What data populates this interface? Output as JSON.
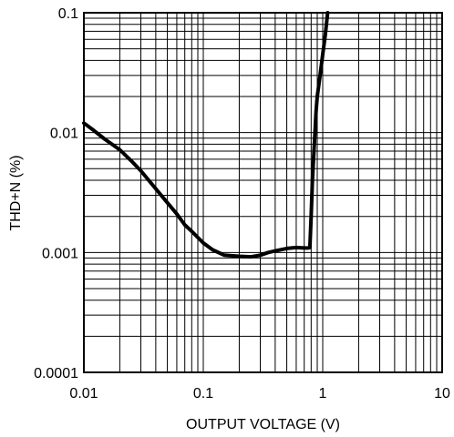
{
  "chart_data": {
    "type": "line",
    "xlabel": "OUTPUT VOLTAGE (V)",
    "ylabel": "THD+N (%)",
    "x_scale": "log",
    "y_scale": "log",
    "xlim": [
      0.01,
      10
    ],
    "ylim": [
      0.0001,
      0.1
    ],
    "grid": true,
    "x_ticks": [
      {
        "value": 0.01,
        "label": "0.01"
      },
      {
        "value": 0.1,
        "label": "0.1"
      },
      {
        "value": 1,
        "label": "1"
      },
      {
        "value": 10,
        "label": "10"
      }
    ],
    "y_ticks": [
      {
        "value": 0.0001,
        "label": "0.0001"
      },
      {
        "value": 0.001,
        "label": "0.001"
      },
      {
        "value": 0.01,
        "label": "0.01"
      },
      {
        "value": 0.1,
        "label": "0.1"
      }
    ],
    "series": [
      {
        "x": [
          0.01,
          0.012,
          0.015,
          0.02,
          0.025,
          0.03,
          0.04,
          0.05,
          0.06,
          0.07,
          0.08,
          0.1,
          0.12,
          0.15,
          0.2,
          0.25,
          0.3,
          0.35,
          0.4,
          0.5,
          0.6,
          0.7,
          0.75,
          0.78,
          0.8,
          0.82,
          0.85,
          0.88,
          0.9,
          0.95,
          1.0,
          1.05,
          1.1
        ],
        "y": [
          0.012,
          0.0105,
          0.0088,
          0.0072,
          0.0058,
          0.0048,
          0.0034,
          0.0026,
          0.0021,
          0.0017,
          0.0015,
          0.0012,
          0.00105,
          0.00095,
          0.00093,
          0.00092,
          0.00095,
          0.001,
          0.00103,
          0.00108,
          0.0011,
          0.00109,
          0.00109,
          0.0011,
          0.002,
          0.004,
          0.008,
          0.015,
          0.02,
          0.03,
          0.045,
          0.065,
          0.1
        ]
      }
    ]
  }
}
